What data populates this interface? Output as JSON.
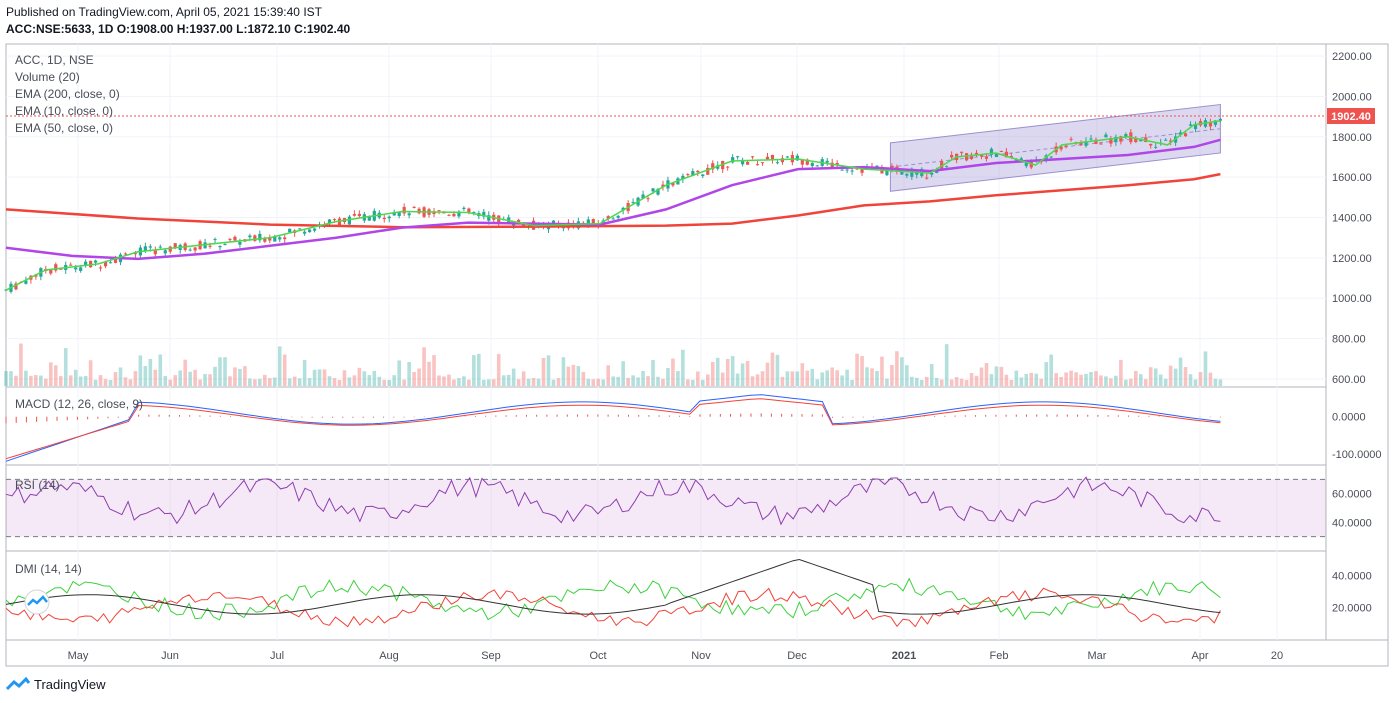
{
  "header": {
    "published": "Published on TradingView.com, April 05, 2021 15:39:40 IST",
    "symbol": "ACC:NSE:5633, 1D",
    "ohlc": "O:1908.00 H:1937.00 L:1872.10 C:1902.40"
  },
  "legend": {
    "title": "ACC, 1D, NSE",
    "items": [
      "Volume (20)",
      "EMA (200, close, 0)",
      "EMA (10, close, 0)",
      "EMA (50, close, 0)"
    ]
  },
  "panes": {
    "macd": "MACD (12, 26, close, 9)",
    "rsi": "RSI (14)",
    "dmi": "DMI (14, 14)"
  },
  "price_badge": "1902.40",
  "footer": {
    "brand": "TradingView"
  },
  "colors": {
    "up": "#26a69a",
    "down": "#ef5350",
    "ema10": "#4cd84c",
    "ema50": "#b046e8",
    "ema200": "#f0443a",
    "channel": "#9c8fd0",
    "macd": "#2962ff",
    "signal": "#f44336",
    "rsi": "#8e3fad",
    "dmi_plus": "#3dd13d",
    "dmi_minus": "#f0443a",
    "adx": "#333333"
  },
  "chart_data": {
    "type": "line",
    "price_axis": {
      "ticks": [
        "2200.00",
        "2000.00",
        "1800.00",
        "1600.00",
        "1400.00",
        "1200.00",
        "1000.00",
        "800.00",
        "600.00"
      ],
      "ylim": [
        560,
        2260
      ]
    },
    "macd_axis": {
      "ticks": [
        "0.0000",
        "-100.0000"
      ],
      "ylim": [
        -130,
        80
      ]
    },
    "rsi_axis": {
      "ticks": [
        "60.0000",
        "40.0000"
      ],
      "bands": [
        70,
        30
      ]
    },
    "dmi_axis": {
      "ticks": [
        "40.0000",
        "20.0000"
      ],
      "ylim": [
        0,
        55
      ]
    },
    "x_labels": [
      "May",
      "Jun",
      "Jul",
      "Aug",
      "Sep",
      "Oct",
      "Nov",
      "Dec",
      "2021",
      "Feb",
      "Mar",
      "Apr",
      "20"
    ],
    "ema200": [
      [
        0,
        1440
      ],
      [
        0.1,
        1395
      ],
      [
        0.2,
        1365
      ],
      [
        0.3,
        1352
      ],
      [
        0.4,
        1355
      ],
      [
        0.5,
        1360
      ],
      [
        0.55,
        1370
      ],
      [
        0.6,
        1410
      ],
      [
        0.65,
        1460
      ],
      [
        0.7,
        1480
      ],
      [
        0.75,
        1510
      ],
      [
        0.8,
        1535
      ],
      [
        0.85,
        1560
      ],
      [
        0.9,
        1590
      ],
      [
        0.92,
        1615
      ]
    ],
    "ema50": [
      [
        0,
        1250
      ],
      [
        0.05,
        1210
      ],
      [
        0.1,
        1195
      ],
      [
        0.15,
        1220
      ],
      [
        0.2,
        1260
      ],
      [
        0.25,
        1300
      ],
      [
        0.3,
        1350
      ],
      [
        0.35,
        1375
      ],
      [
        0.4,
        1370
      ],
      [
        0.45,
        1365
      ],
      [
        0.5,
        1440
      ],
      [
        0.55,
        1560
      ],
      [
        0.6,
        1640
      ],
      [
        0.65,
        1650
      ],
      [
        0.7,
        1630
      ],
      [
        0.75,
        1670
      ],
      [
        0.8,
        1690
      ],
      [
        0.85,
        1710
      ],
      [
        0.9,
        1750
      ],
      [
        0.92,
        1785
      ]
    ],
    "ema10": [
      [
        0,
        1040
      ],
      [
        0.03,
        1140
      ],
      [
        0.07,
        1170
      ],
      [
        0.1,
        1230
      ],
      [
        0.15,
        1265
      ],
      [
        0.2,
        1300
      ],
      [
        0.25,
        1380
      ],
      [
        0.3,
        1430
      ],
      [
        0.35,
        1425
      ],
      [
        0.4,
        1360
      ],
      [
        0.45,
        1370
      ],
      [
        0.5,
        1560
      ],
      [
        0.55,
        1680
      ],
      [
        0.6,
        1690
      ],
      [
        0.65,
        1640
      ],
      [
        0.7,
        1620
      ],
      [
        0.72,
        1700
      ],
      [
        0.75,
        1720
      ],
      [
        0.78,
        1660
      ],
      [
        0.8,
        1760
      ],
      [
        0.85,
        1800
      ],
      [
        0.88,
        1760
      ],
      [
        0.9,
        1860
      ],
      [
        0.92,
        1880
      ]
    ],
    "channel": {
      "upper": [
        [
          0.67,
          1770
        ],
        [
          0.92,
          1960
        ]
      ],
      "lower": [
        [
          0.67,
          1530
        ],
        [
          0.92,
          1720
        ]
      ]
    },
    "last_close": 1902.4
  }
}
